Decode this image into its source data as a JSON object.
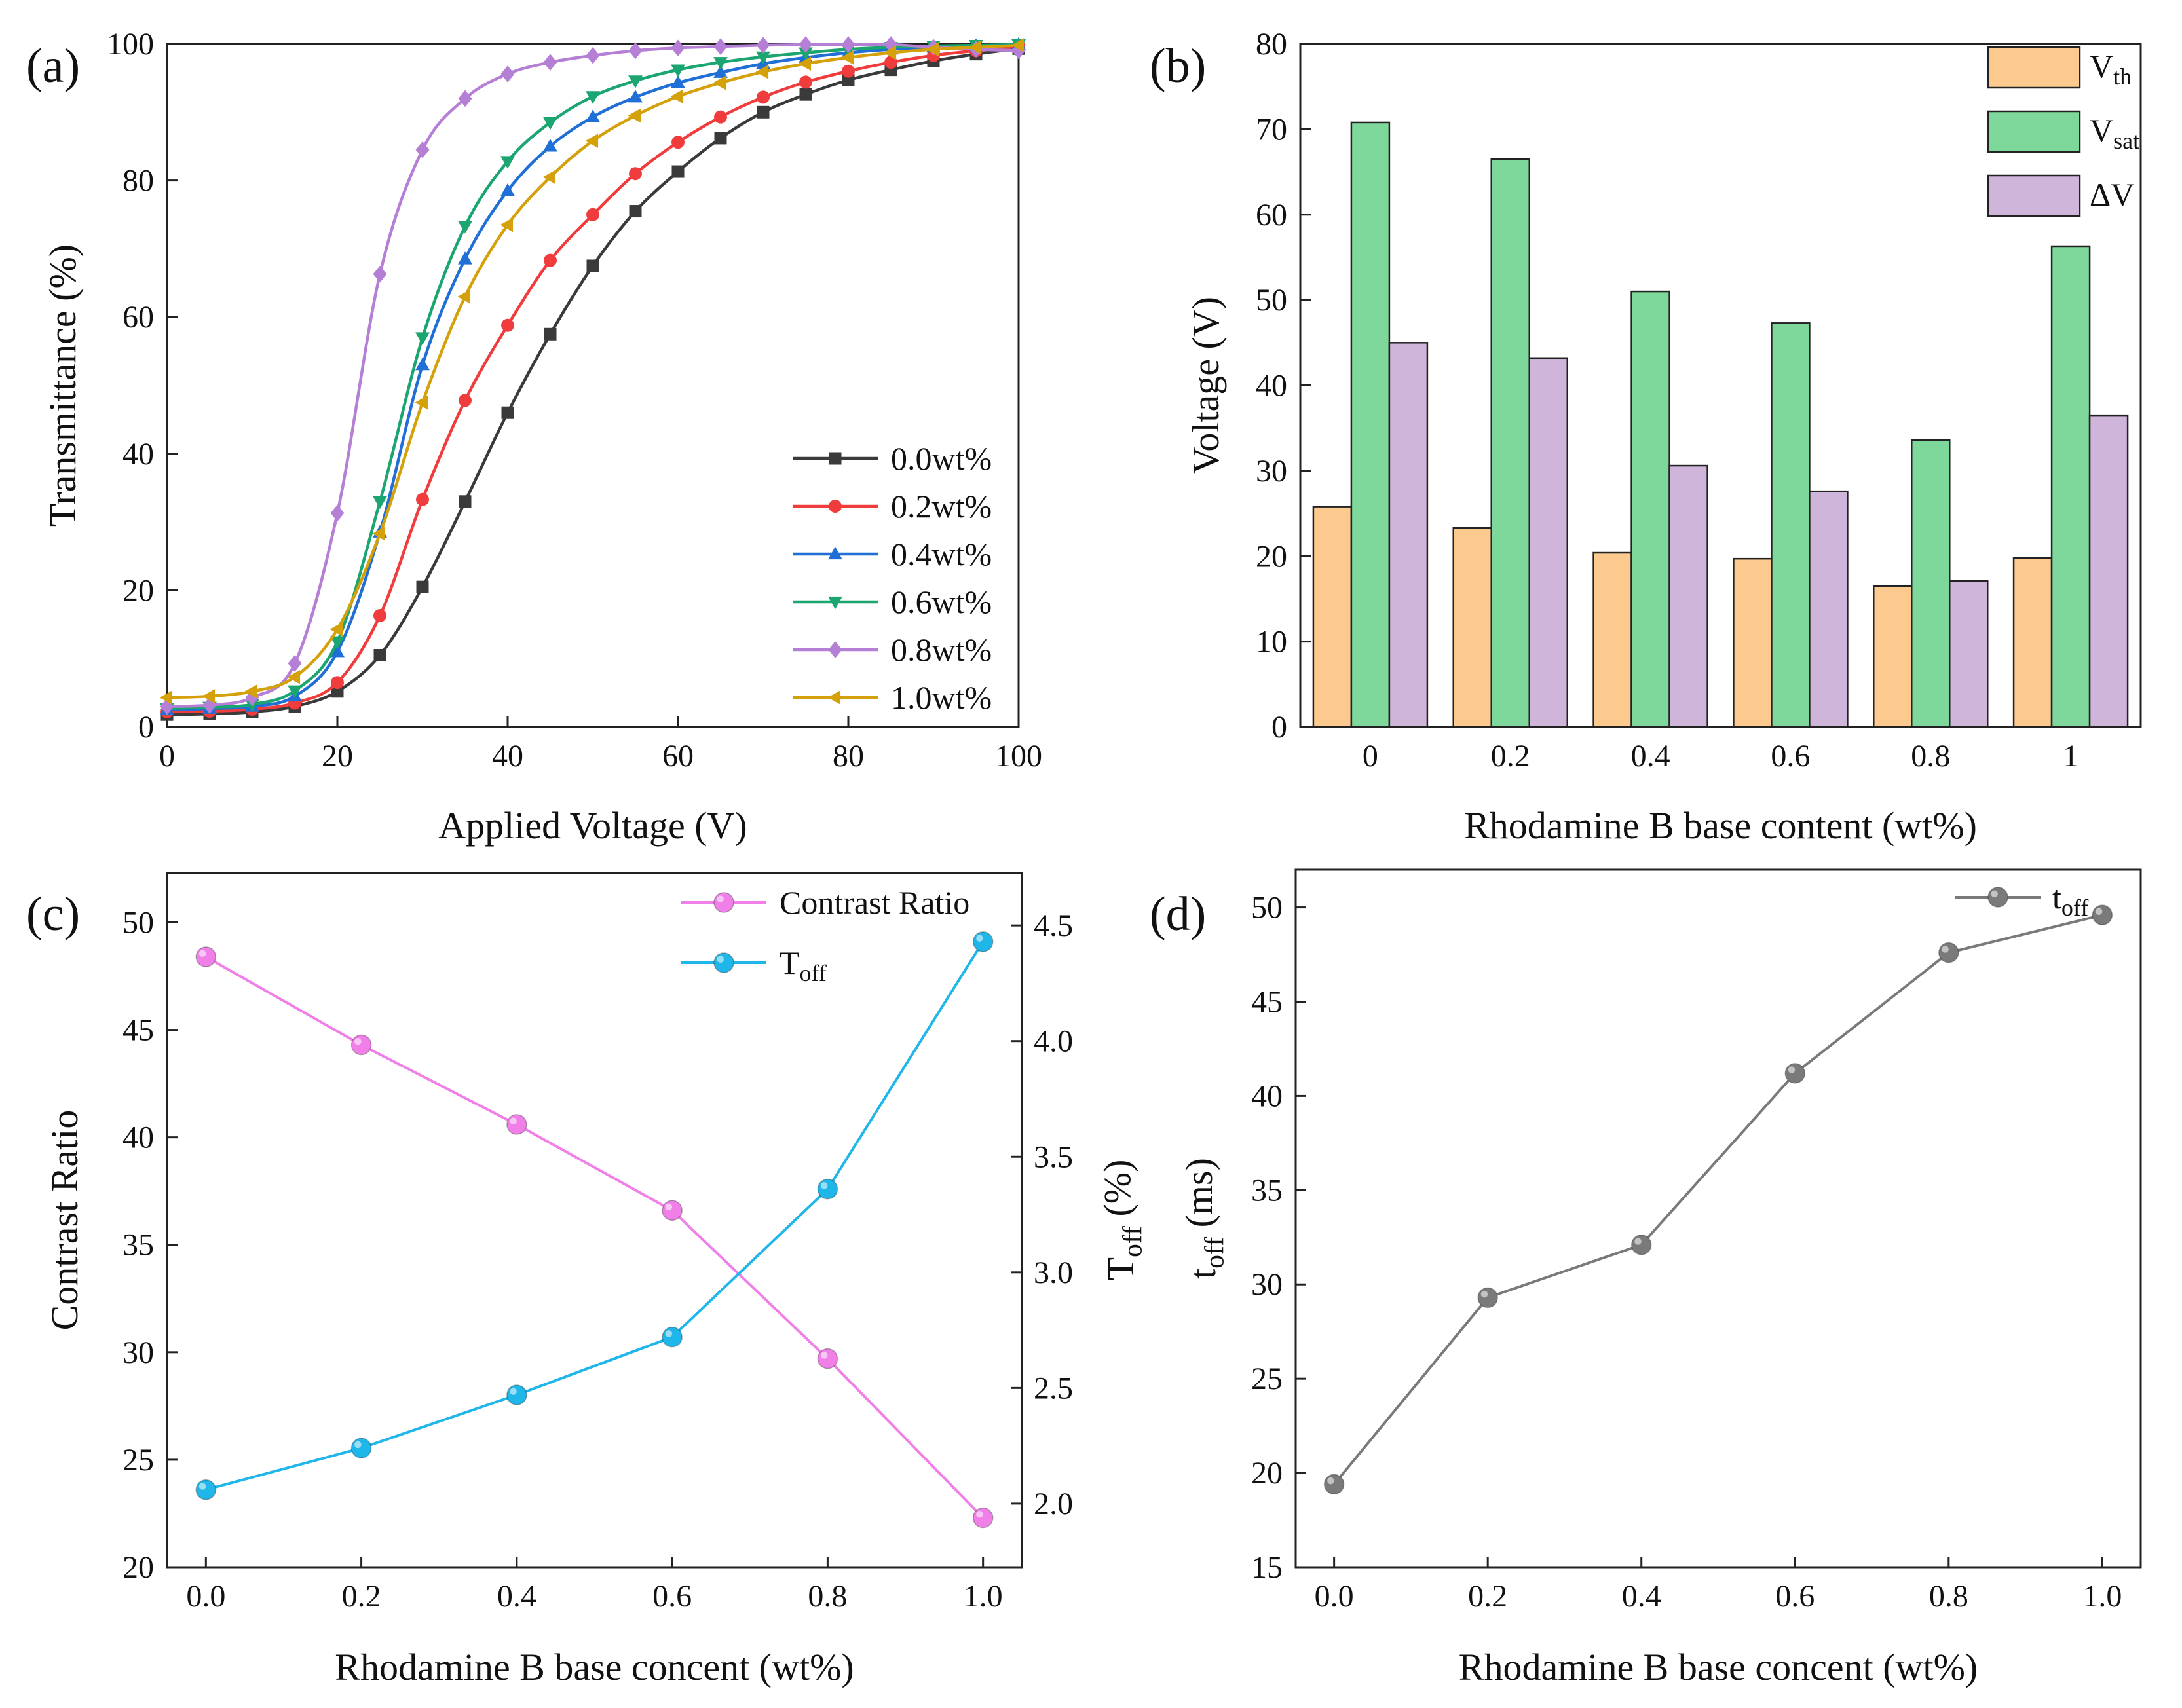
{
  "figure": {
    "panels": [
      "(a)",
      "(b)",
      "(c)",
      "(d)"
    ]
  },
  "chart_data": [
    {
      "id": "a",
      "panel_label": "(a)",
      "type": "line",
      "xlabel": "Applied Voltage (V)",
      "ylabel": "Transmittance (%)",
      "xlim": [
        0,
        100
      ],
      "ylim": [
        0,
        100
      ],
      "xticks": [
        0,
        20,
        40,
        60,
        80,
        100
      ],
      "yticks": [
        0,
        20,
        40,
        60,
        80,
        100
      ],
      "x": [
        0,
        5,
        10,
        15,
        20,
        25,
        30,
        35,
        40,
        45,
        50,
        55,
        60,
        65,
        70,
        75,
        80,
        85,
        90,
        95,
        100
      ],
      "series": [
        {
          "name": "0.0wt%",
          "color": "#3a3a3a",
          "marker": "square",
          "values": [
            1.8,
            1.9,
            2.2,
            3.0,
            5.2,
            10.5,
            20.5,
            33.0,
            46.0,
            57.5,
            67.5,
            75.5,
            81.3,
            86.2,
            90.0,
            92.6,
            94.7,
            96.2,
            97.5,
            98.5,
            99.3
          ]
        },
        {
          "name": "0.2wt%",
          "color": "#f03c3c",
          "marker": "circle",
          "values": [
            2.2,
            2.3,
            2.6,
            3.5,
            6.5,
            16.3,
            33.3,
            47.8,
            58.8,
            68.3,
            75.0,
            81.0,
            85.6,
            89.3,
            92.2,
            94.4,
            96.0,
            97.3,
            98.3,
            99.0,
            99.6
          ]
        },
        {
          "name": "0.4wt%",
          "color": "#1f6fd6",
          "marker": "triangle-up",
          "values": [
            2.5,
            2.7,
            3.0,
            4.5,
            11.0,
            28.5,
            53.0,
            68.5,
            78.5,
            85.0,
            89.3,
            92.2,
            94.3,
            95.8,
            97.1,
            98.0,
            98.7,
            99.2,
            99.5,
            99.7,
            99.9
          ]
        },
        {
          "name": "0.6wt%",
          "color": "#1aa571",
          "marker": "triangle-down",
          "values": [
            2.7,
            2.9,
            3.3,
            5.3,
            12.5,
            33.0,
            57.0,
            73.3,
            82.8,
            88.5,
            92.3,
            94.6,
            96.2,
            97.3,
            98.1,
            98.7,
            99.2,
            99.5,
            99.7,
            99.8,
            99.9
          ]
        },
        {
          "name": "0.8wt%",
          "color": "#b67fd6",
          "marker": "diamond",
          "values": [
            3.0,
            3.2,
            4.3,
            9.3,
            31.3,
            66.3,
            84.5,
            92.0,
            95.6,
            97.3,
            98.3,
            99.0,
            99.4,
            99.6,
            99.8,
            99.9,
            99.9,
            99.9,
            99.5,
            99.2,
            99.0
          ]
        },
        {
          "name": "1.0wt%",
          "color": "#d4a10a",
          "marker": "triangle-left",
          "values": [
            4.3,
            4.5,
            5.2,
            7.3,
            14.3,
            28.3,
            47.5,
            63.0,
            73.5,
            80.5,
            85.8,
            89.5,
            92.3,
            94.3,
            95.9,
            97.1,
            98.0,
            98.7,
            99.2,
            99.5,
            99.8
          ]
        }
      ],
      "legend_position": "bottom-right"
    },
    {
      "id": "b",
      "panel_label": "(b)",
      "type": "bar",
      "xlabel": "Rhodamine B base content (wt%)",
      "ylabel": "Voltage (V)",
      "categories": [
        "0",
        "0.2",
        "0.4",
        "0.6",
        "0.8",
        "1"
      ],
      "ylim": [
        0,
        80
      ],
      "yticks": [
        0,
        10,
        20,
        30,
        40,
        50,
        60,
        70,
        80
      ],
      "series": [
        {
          "name": "V",
          "sub": "th",
          "color": "#fcc98e",
          "values": [
            25.8,
            23.3,
            20.4,
            19.7,
            16.5,
            19.8
          ]
        },
        {
          "name": "V",
          "sub": "sat",
          "color": "#7fd89b",
          "values": [
            70.8,
            66.5,
            51.0,
            47.3,
            33.6,
            56.3
          ]
        },
        {
          "name": "ΔV",
          "sub": "",
          "color": "#cfb5da",
          "values": [
            45.0,
            43.2,
            30.6,
            27.6,
            17.1,
            36.5
          ]
        }
      ],
      "legend_position": "top-right"
    },
    {
      "id": "c",
      "panel_label": "(c)",
      "type": "line",
      "xlabel": "Rhodamine B base concent (wt%)",
      "ylabel": "Contrast Ratio",
      "y2label": "T",
      "y2label_sub": "off",
      "y2label_suffix": " (%)",
      "x": [
        0.0,
        0.2,
        0.4,
        0.6,
        0.8,
        1.0
      ],
      "xticks": [
        "0.0",
        "0.2",
        "0.4",
        "0.6",
        "0.8",
        "1.0"
      ],
      "xlim": [
        -0.05,
        1.05
      ],
      "ylim": [
        20,
        52.3
      ],
      "yticks": [
        20,
        25,
        30,
        35,
        40,
        45,
        50
      ],
      "y2lim": [
        1.725,
        4.727
      ],
      "y2ticks": [
        "2.0",
        "2.5",
        "3.0",
        "3.5",
        "4.0",
        "4.5"
      ],
      "series": [
        {
          "name": "Contrast Ratio",
          "sub": "",
          "axis": "left",
          "color": "#f080e8",
          "values": [
            48.4,
            44.3,
            40.6,
            36.6,
            29.7,
            22.3
          ]
        },
        {
          "name": "T",
          "sub": "off",
          "axis": "right",
          "color": "#1fb6ea",
          "values": [
            2.06,
            2.24,
            2.47,
            2.72,
            3.36,
            4.43
          ]
        }
      ],
      "legend_position": "top-right"
    },
    {
      "id": "d",
      "panel_label": "(d)",
      "type": "line",
      "xlabel": "Rhodamine B base concent (wt%)",
      "ylabel": "t",
      "ylabel_sub": "off",
      "ylabel_suffix": " (ms)",
      "x": [
        0.0,
        0.2,
        0.4,
        0.6,
        0.8,
        1.0
      ],
      "xticks": [
        "0.0",
        "0.2",
        "0.4",
        "0.6",
        "0.8",
        "1.0"
      ],
      "xlim": [
        -0.05,
        1.05
      ],
      "ylim": [
        15,
        52
      ],
      "yticks": [
        15,
        20,
        25,
        30,
        35,
        40,
        45,
        50
      ],
      "series": [
        {
          "name": "t",
          "sub": "off",
          "color": "#7a7a7a",
          "values": [
            19.4,
            29.3,
            32.1,
            41.2,
            47.6,
            49.6
          ]
        }
      ],
      "legend_position": "top-right"
    }
  ]
}
